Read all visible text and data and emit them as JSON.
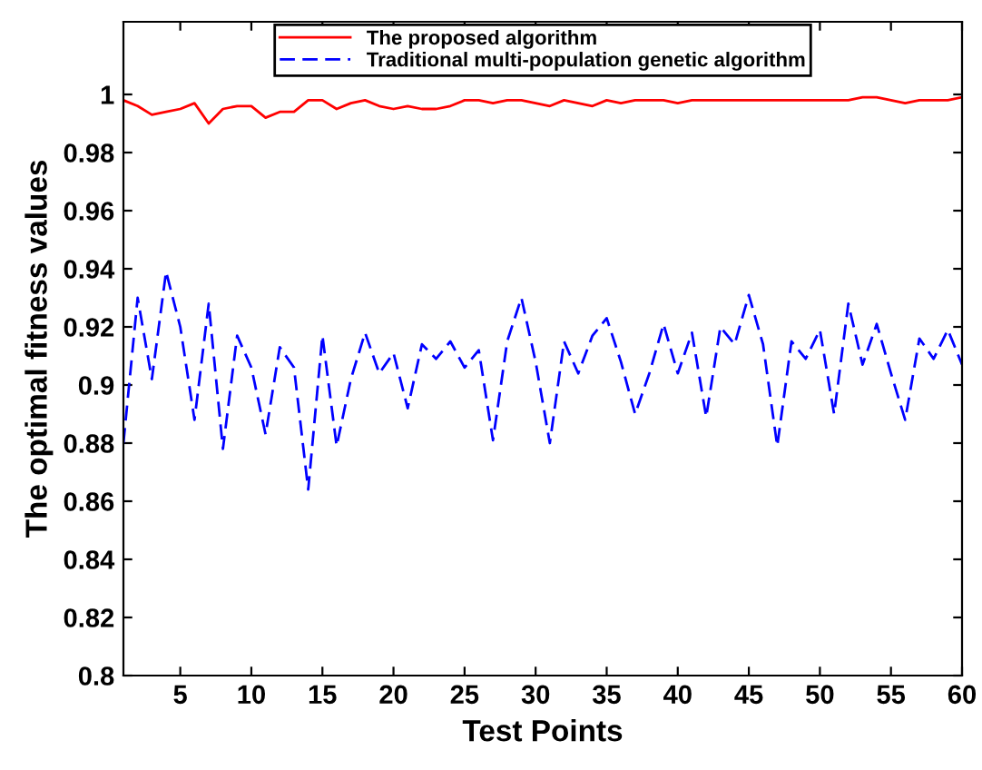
{
  "chart_data": {
    "type": "line",
    "xlabel": "Test Points",
    "ylabel": "The optimal fitness values",
    "x": [
      1,
      2,
      3,
      4,
      5,
      6,
      7,
      8,
      9,
      10,
      11,
      12,
      13,
      14,
      15,
      16,
      17,
      18,
      19,
      20,
      21,
      22,
      23,
      24,
      25,
      26,
      27,
      28,
      29,
      30,
      31,
      32,
      33,
      34,
      35,
      36,
      37,
      38,
      39,
      40,
      41,
      42,
      43,
      44,
      45,
      46,
      47,
      48,
      49,
      50,
      51,
      52,
      53,
      54,
      55,
      56,
      57,
      58,
      59,
      60
    ],
    "series": [
      {
        "name": "The proposed algorithm",
        "color": "#ff0000",
        "line_style": "solid",
        "values": [
          0.998,
          0.996,
          0.993,
          0.994,
          0.995,
          0.997,
          0.99,
          0.995,
          0.996,
          0.996,
          0.992,
          0.994,
          0.994,
          0.998,
          0.998,
          0.995,
          0.997,
          0.998,
          0.996,
          0.995,
          0.996,
          0.995,
          0.995,
          0.996,
          0.998,
          0.998,
          0.997,
          0.998,
          0.998,
          0.997,
          0.996,
          0.998,
          0.997,
          0.996,
          0.998,
          0.997,
          0.998,
          0.998,
          0.998,
          0.997,
          0.998,
          0.998,
          0.998,
          0.998,
          0.998,
          0.998,
          0.998,
          0.998,
          0.998,
          0.998,
          0.998,
          0.998,
          0.999,
          0.999,
          0.998,
          0.997,
          0.998,
          0.998,
          0.998,
          0.999
        ]
      },
      {
        "name": "Traditional multi-population genetic algorithm",
        "color": "#0000ff",
        "line_style": "dashed",
        "values": [
          0.88,
          0.93,
          0.902,
          0.939,
          0.92,
          0.888,
          0.928,
          0.878,
          0.917,
          0.906,
          0.883,
          0.913,
          0.906,
          0.864,
          0.917,
          0.879,
          0.902,
          0.918,
          0.904,
          0.911,
          0.892,
          0.914,
          0.909,
          0.915,
          0.906,
          0.912,
          0.881,
          0.915,
          0.93,
          0.908,
          0.88,
          0.915,
          0.904,
          0.917,
          0.923,
          0.908,
          0.89,
          0.904,
          0.921,
          0.904,
          0.918,
          0.889,
          0.92,
          0.914,
          0.931,
          0.914,
          0.879,
          0.915,
          0.909,
          0.919,
          0.89,
          0.928,
          0.907,
          0.921,
          0.904,
          0.888,
          0.916,
          0.909,
          0.919,
          0.907
        ]
      }
    ],
    "xlim": [
      1,
      60
    ],
    "xticks": [
      5,
      10,
      15,
      20,
      25,
      30,
      35,
      40,
      45,
      50,
      55,
      60
    ],
    "ylim": [
      0.8,
      1.025
    ],
    "yticks": [
      0.8,
      0.82,
      0.84,
      0.86,
      0.88,
      0.9,
      0.92,
      0.94,
      0.96,
      0.98,
      {
        "value": 1.0,
        "label": "1"
      }
    ],
    "grid": false,
    "legend": "top",
    "marker": "none"
  }
}
